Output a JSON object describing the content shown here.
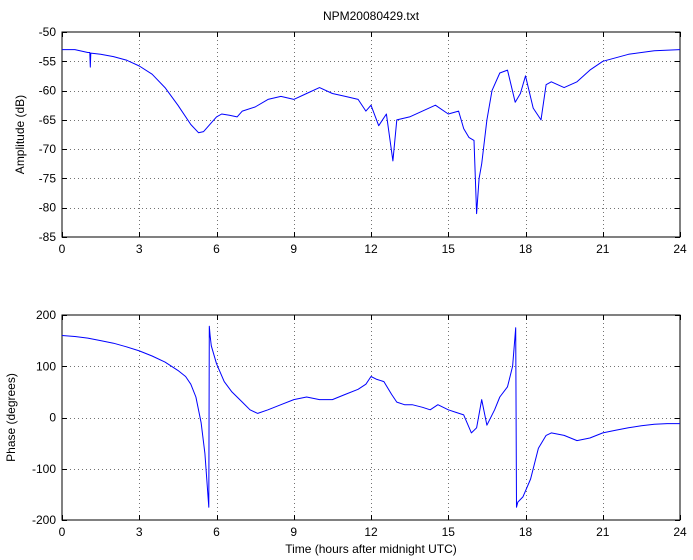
{
  "chart_data": [
    {
      "type": "line",
      "title": "NPM20080429.txt",
      "xlabel": "",
      "ylabel": "Amplitude (dB)",
      "xlim": [
        0,
        24
      ],
      "ylim": [
        -85,
        -50
      ],
      "xticks": [
        0,
        3,
        6,
        9,
        12,
        15,
        18,
        21,
        24
      ],
      "yticks": [
        -85,
        -80,
        -75,
        -70,
        -65,
        -60,
        -55,
        -50
      ],
      "xtick_labels": [
        "0",
        "3",
        "6",
        "9",
        "12",
        "15",
        "18",
        "21",
        "24"
      ],
      "ytick_labels": [
        "-85",
        "-80",
        "-75",
        "-70",
        "-65",
        "-60",
        "-55",
        "-50"
      ],
      "grid": true,
      "series": [
        {
          "color": "#0000ff",
          "x": [
            0,
            0.5,
            1.0,
            1.08,
            1.1,
            1.12,
            1.5,
            2.0,
            2.5,
            3.0,
            3.5,
            4.0,
            4.5,
            5.0,
            5.3,
            5.5,
            5.8,
            6.0,
            6.2,
            6.5,
            6.8,
            7.0,
            7.5,
            8.0,
            8.5,
            9.0,
            9.5,
            10.0,
            10.5,
            11.0,
            11.5,
            11.8,
            12.0,
            12.3,
            12.6,
            12.85,
            13.0,
            13.5,
            14.0,
            14.5,
            15.0,
            15.4,
            15.6,
            15.8,
            16.0,
            16.1,
            16.2,
            16.3,
            16.5,
            16.7,
            17.0,
            17.3,
            17.6,
            17.8,
            18.0,
            18.3,
            18.6,
            18.8,
            19.0,
            19.5,
            20.0,
            20.5,
            21.0,
            22.0,
            23.0,
            24.0
          ],
          "y": [
            -53,
            -53,
            -53.5,
            -53.5,
            -56,
            -53.6,
            -53.8,
            -54.2,
            -54.8,
            -55.8,
            -57.2,
            -59.5,
            -62.5,
            -65.8,
            -67.2,
            -67,
            -65.5,
            -64.5,
            -64,
            -64.2,
            -64.5,
            -63.5,
            -62.8,
            -61.5,
            -61,
            -61.5,
            -60.5,
            -59.5,
            -60.5,
            -61,
            -61.5,
            -63.5,
            -62.5,
            -66,
            -64,
            -72,
            -65,
            -64.5,
            -63.5,
            -62.5,
            -64,
            -63.5,
            -66.5,
            -68,
            -68.5,
            -81,
            -75,
            -72.5,
            -65,
            -60,
            -57,
            -56.5,
            -62,
            -60.5,
            -57.5,
            -63,
            -65,
            -59,
            -58.5,
            -59.5,
            -58.5,
            -56.5,
            -55,
            -53.8,
            -53.2,
            -53
          ]
        }
      ]
    },
    {
      "type": "line",
      "title": "",
      "xlabel": "Time (hours after midnight UTC)",
      "ylabel": "Phase (degrees)",
      "xlim": [
        0,
        24
      ],
      "ylim": [
        -200,
        200
      ],
      "xticks": [
        0,
        3,
        6,
        9,
        12,
        15,
        18,
        21,
        24
      ],
      "yticks": [
        -200,
        -100,
        0,
        100,
        200
      ],
      "xtick_labels": [
        "0",
        "3",
        "6",
        "9",
        "12",
        "15",
        "18",
        "21",
        "24"
      ],
      "ytick_labels": [
        "-200",
        "-100",
        "0",
        "100",
        "200"
      ],
      "grid": true,
      "series": [
        {
          "color": "#0000ff",
          "x": [
            0,
            0.5,
            1.0,
            1.5,
            2.0,
            2.5,
            3.0,
            3.5,
            4.0,
            4.5,
            4.8,
            5.0,
            5.2,
            5.4,
            5.55,
            5.7,
            5.72,
            5.75,
            5.8,
            6.0,
            6.3,
            6.6,
            7.0,
            7.3,
            7.6,
            8.0,
            8.5,
            9.0,
            9.5,
            10.0,
            10.5,
            11.0,
            11.5,
            11.8,
            12.0,
            12.2,
            12.5,
            12.8,
            13.0,
            13.3,
            13.6,
            14.0,
            14.3,
            14.6,
            15.0,
            15.3,
            15.6,
            15.9,
            16.1,
            16.3,
            16.5,
            16.8,
            17.0,
            17.3,
            17.5,
            17.62,
            17.65,
            17.7,
            17.9,
            18.2,
            18.5,
            18.8,
            19.0,
            19.5,
            20.0,
            20.5,
            21.0,
            21.5,
            22.0,
            22.5,
            23.0,
            23.5,
            24.0
          ],
          "y": [
            160,
            158,
            155,
            150,
            145,
            138,
            130,
            120,
            108,
            92,
            80,
            65,
            40,
            -10,
            -70,
            -175,
            178,
            160,
            140,
            105,
            70,
            50,
            30,
            15,
            8,
            15,
            25,
            35,
            40,
            35,
            35,
            45,
            55,
            65,
            80,
            75,
            70,
            45,
            30,
            25,
            25,
            20,
            15,
            25,
            15,
            10,
            5,
            -30,
            -20,
            35,
            -15,
            15,
            40,
            60,
            100,
            175,
            -175,
            -165,
            -155,
            -120,
            -60,
            -35,
            -30,
            -35,
            -45,
            -40,
            -30,
            -25,
            -20,
            -16,
            -13,
            -12,
            -12
          ]
        }
      ]
    }
  ]
}
